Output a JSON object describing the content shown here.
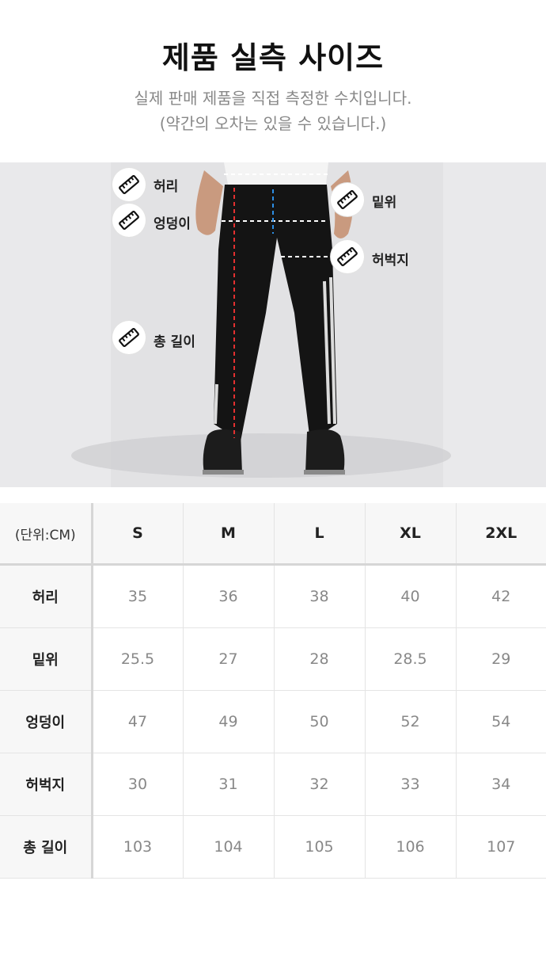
{
  "header": {
    "title": "제품 실측 사이즈",
    "subtitle_line1": "실제 판매 제품을 직접 측정한 수치입니다.",
    "subtitle_line2": "(약간의 오차는 있을 수 있습니다.)"
  },
  "diagram": {
    "labels": {
      "waist": "허리",
      "hip": "엉덩이",
      "total_length": "총 길이",
      "rise": "밑위",
      "thigh": "허벅지"
    },
    "icon": "ruler-icon",
    "colors": {
      "total_length_line": "#e53030",
      "rise_line": "#2d8fe6",
      "guide_line": "#ffffff"
    }
  },
  "size_table": {
    "unit_label": "(단위:CM)",
    "sizes": [
      "S",
      "M",
      "L",
      "XL",
      "2XL"
    ],
    "rows": [
      {
        "label": "허리",
        "values": [
          "35",
          "36",
          "38",
          "40",
          "42"
        ]
      },
      {
        "label": "밑위",
        "values": [
          "25.5",
          "27",
          "28",
          "28.5",
          "29"
        ]
      },
      {
        "label": "엉덩이",
        "values": [
          "47",
          "49",
          "50",
          "52",
          "54"
        ]
      },
      {
        "label": "허벅지",
        "values": [
          "30",
          "31",
          "32",
          "33",
          "34"
        ]
      },
      {
        "label": "총 길이",
        "values": [
          "103",
          "104",
          "105",
          "106",
          "107"
        ]
      }
    ]
  }
}
